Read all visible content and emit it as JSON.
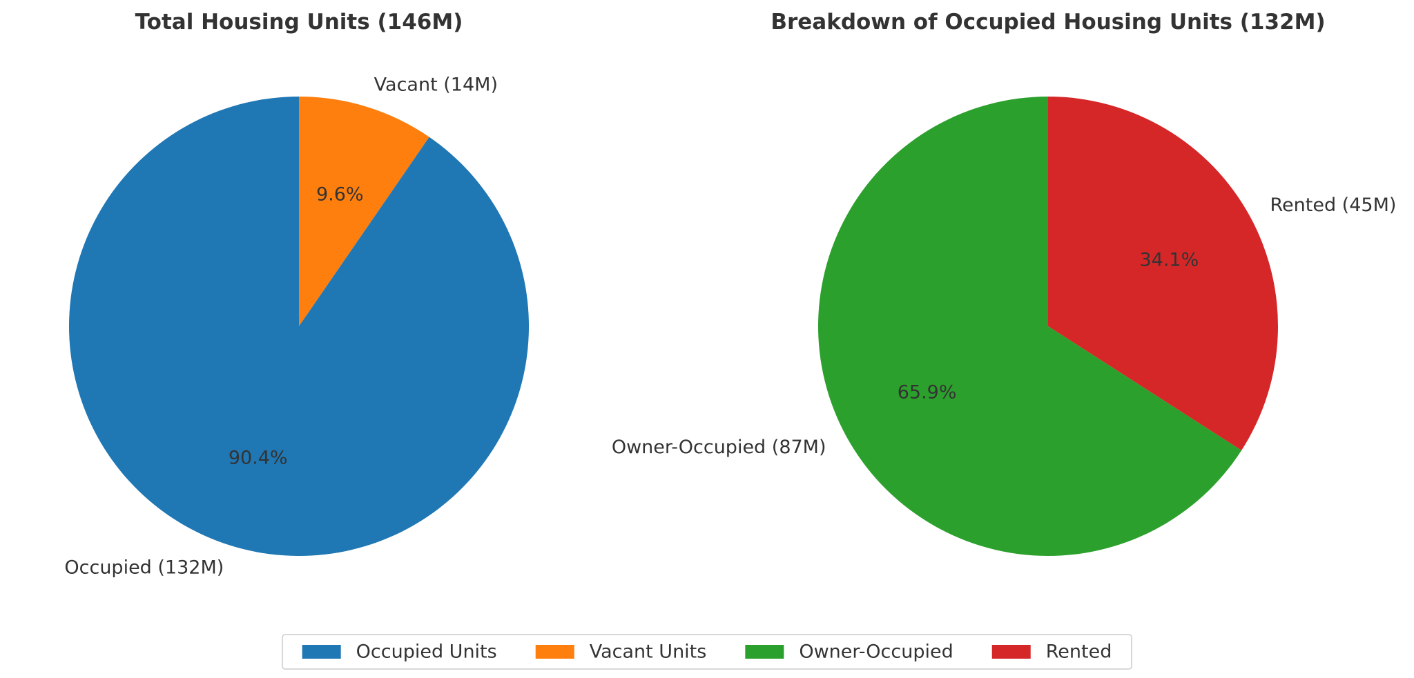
{
  "chart_data": [
    {
      "type": "pie",
      "title": "Total Housing Units (146M)",
      "start_angle_deg": 90,
      "direction": "clockwise",
      "slices": [
        {
          "label": "Vacant (14M)",
          "value": 14,
          "percent_label": "9.6%",
          "color": "#ff7f0e"
        },
        {
          "label": "Occupied (132M)",
          "value": 132,
          "percent_label": "90.4%",
          "color": "#1f77b4"
        }
      ]
    },
    {
      "type": "pie",
      "title": "Breakdown of Occupied Housing Units (132M)",
      "start_angle_deg": 90,
      "direction": "clockwise",
      "slices": [
        {
          "label": "Rented (45M)",
          "value": 45,
          "percent_label": "34.1%",
          "color": "#d62728"
        },
        {
          "label": "Owner-Occupied (87M)",
          "value": 87,
          "percent_label": "65.9%",
          "color": "#2ca02c"
        }
      ]
    }
  ],
  "legend": {
    "placement": "bottom-center",
    "items": [
      {
        "label": "Occupied Units",
        "color": "#1f77b4"
      },
      {
        "label": "Vacant Units",
        "color": "#ff7f0e"
      },
      {
        "label": "Owner-Occupied",
        "color": "#2ca02c"
      },
      {
        "label": "Rented",
        "color": "#d62728"
      }
    ]
  }
}
